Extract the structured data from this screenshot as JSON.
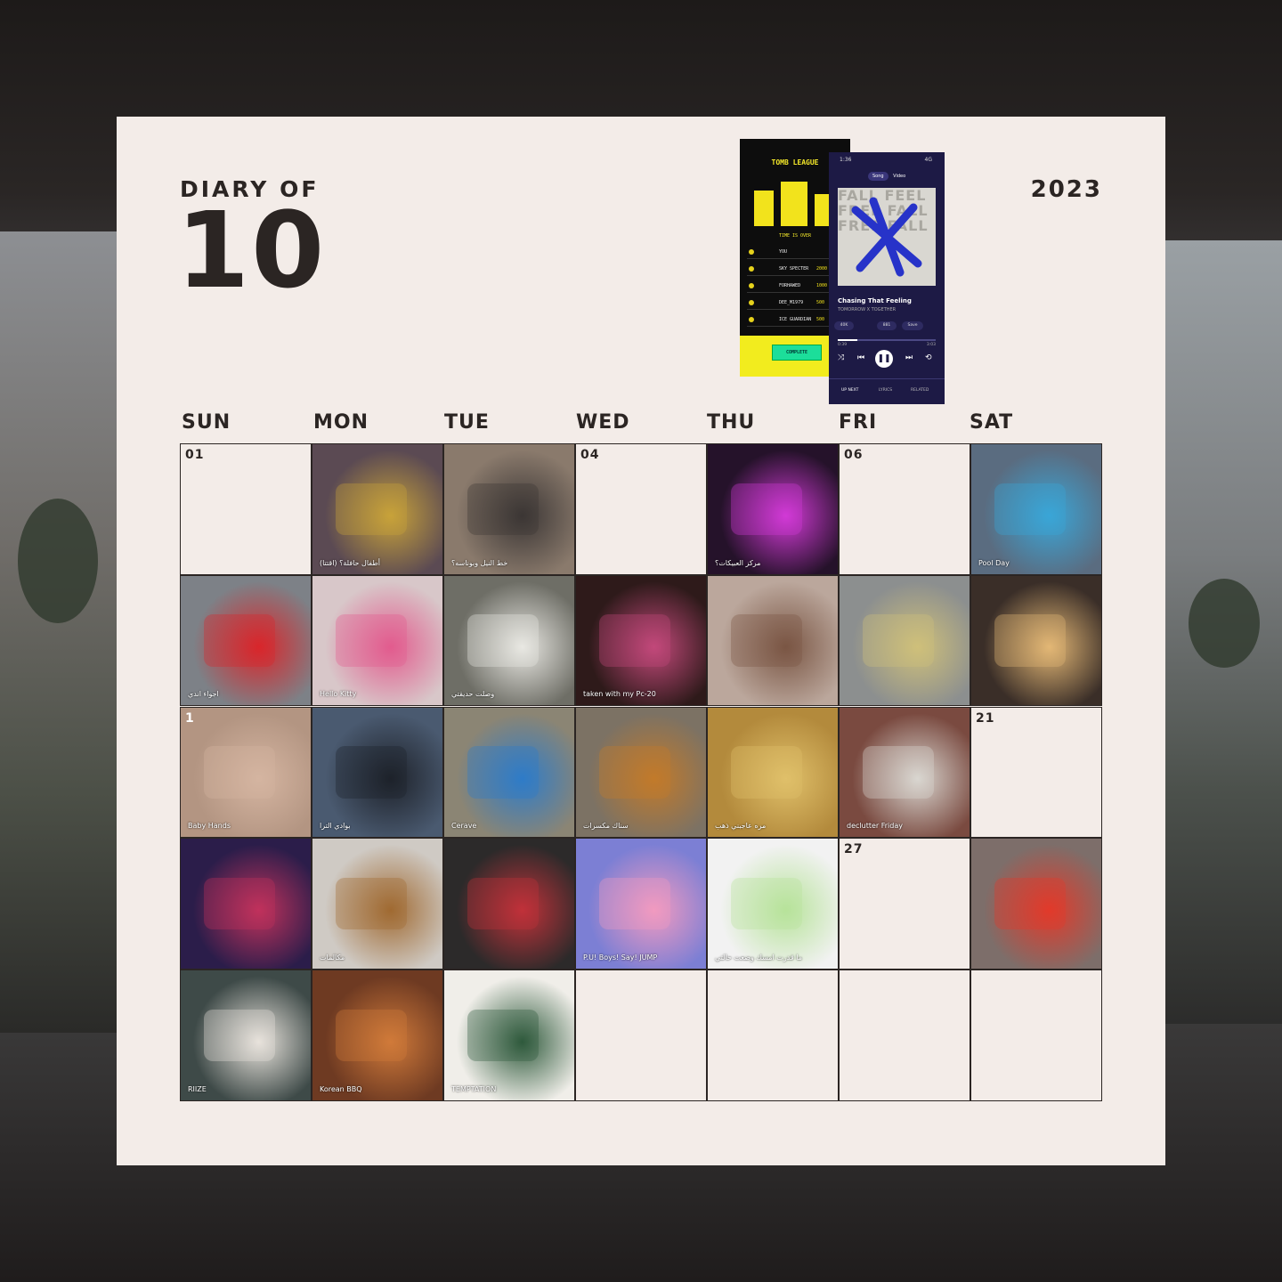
{
  "header": {
    "diary_of": "DIARY OF",
    "month": "10",
    "year": "2023"
  },
  "weekdays": [
    "SUN",
    "MON",
    "TUE",
    "WED",
    "THU",
    "FRI",
    "SAT"
  ],
  "game_screenshot": {
    "title": "TOMB LEAGUE",
    "status": "TIME IS OVER",
    "leaderboard": [
      {
        "rank": "1",
        "name": "YOU",
        "score": ""
      },
      {
        "rank": "2",
        "name": "SKY SPECTER",
        "score": "2000"
      },
      {
        "rank": "3",
        "name": "FORHAWED",
        "score": "1000"
      },
      {
        "rank": "4",
        "name": "DEE_M1979",
        "score": "500"
      },
      {
        "rank": "5",
        "name": "ICE GUARDIAN",
        "score": "500"
      }
    ],
    "button": "COMPLETE"
  },
  "music_screenshot": {
    "status_time": "1:36",
    "status_net": "4G",
    "tabs": [
      "Song",
      "Video"
    ],
    "art_text": "FALL FEEL FREE FALL FREE FALL",
    "song_title": "Chasing That Feeling",
    "artist": "TOMORROW X TOGETHER",
    "chips": [
      "40K",
      "881",
      "Save"
    ],
    "time_elapsed": "0:39",
    "time_total": "3:03",
    "bottom_tabs": [
      "UP NEXT",
      "LYRICS",
      "RELATED"
    ]
  },
  "days": [
    {
      "label": "01",
      "photo": false
    },
    {
      "label": "",
      "photo": true,
      "color": "#5b4a53",
      "accent": "#c8a23a",
      "caption": "أطفال حافلة؟ (اقتتا)"
    },
    {
      "label": "",
      "photo": true,
      "color": "#8a7a6c",
      "accent": "#3b3635",
      "caption": "خط النيل وبوناسه؟"
    },
    {
      "label": "04",
      "photo": false
    },
    {
      "label": "",
      "photo": true,
      "color": "#25122a",
      "accent": "#d23ad6",
      "caption": "مركز العبيكات؟"
    },
    {
      "label": "06",
      "photo": false
    },
    {
      "label": "",
      "photo": true,
      "color": "#5a6c80",
      "accent": "#3aa6d8",
      "caption": "Pool Day"
    },
    {
      "label": "",
      "photo": true,
      "color": "#7d8187",
      "accent": "#d9262b",
      "caption": "اجواء اندي"
    },
    {
      "label": "",
      "photo": true,
      "color": "#d8c7c9",
      "accent": "#e25c8e",
      "caption": "Hello Kitty"
    },
    {
      "label": "",
      "photo": true,
      "color": "#6e6e66",
      "accent": "#e9e8e3",
      "caption": "وصلت حديقتي"
    },
    {
      "label": "",
      "photo": true,
      "color": "#2e1a1a",
      "accent": "#c2497a",
      "caption": "taken with my Pc-20"
    },
    {
      "label": "",
      "photo": true,
      "color": "#bba79c",
      "accent": "#7a5644",
      "caption": ""
    },
    {
      "label": "",
      "photo": true,
      "color": "#8c8f8f",
      "accent": "#cfc07a",
      "caption": ""
    },
    {
      "label": "",
      "photo": true,
      "color": "#3a2e28",
      "accent": "#e3b775",
      "caption": ""
    },
    {
      "label": "1",
      "photo": true,
      "color": "#b39582",
      "accent": "#d5b5a1",
      "caption": "Baby Hands"
    },
    {
      "label": "",
      "photo": true,
      "color": "#4a5a70",
      "accent": "#1e222a",
      "caption": "بوادي الترا"
    },
    {
      "label": "",
      "photo": true,
      "color": "#8b8574",
      "accent": "#2f7cc8",
      "caption": "Cerave"
    },
    {
      "label": "",
      "photo": true,
      "color": "#7c7264",
      "accent": "#c27a2a",
      "caption": "سناك مكسرات"
    },
    {
      "label": "",
      "photo": true,
      "color": "#b38a3c",
      "accent": "#e0c06a",
      "caption": "مره عاجبني ذهب"
    },
    {
      "label": "",
      "photo": true,
      "color": "#7a4a40",
      "accent": "#d9d6d0",
      "caption": "declutter Friday"
    },
    {
      "label": "21",
      "photo": false
    },
    {
      "label": "",
      "photo": true,
      "color": "#2b1d4a",
      "accent": "#c1325c",
      "caption": ""
    },
    {
      "label": "",
      "photo": true,
      "color": "#cfcac4",
      "accent": "#a06a32",
      "caption": "مكالمات"
    },
    {
      "label": "",
      "photo": true,
      "color": "#2c2a2a",
      "accent": "#c1323a",
      "caption": ""
    },
    {
      "label": "",
      "photo": true,
      "color": "#7c7fd4",
      "accent": "#f29ac0",
      "caption": "P.U!  Boys! Say! JUMP"
    },
    {
      "label": "",
      "photo": true,
      "color": "#f2f2f2",
      "accent": "#b7e39a",
      "caption": "ما قدرت امسك وضعت حالتي"
    },
    {
      "label": "27",
      "photo": false
    },
    {
      "label": "",
      "photo": true,
      "color": "#7d6e6a",
      "accent": "#e23a2a",
      "caption": ""
    },
    {
      "label": "",
      "photo": true,
      "color": "#3e4a48",
      "accent": "#e8e3dc",
      "caption": "RIIZE"
    },
    {
      "label": "",
      "photo": true,
      "color": "#6e3a22",
      "accent": "#d07a3a",
      "caption": "Korean BBQ"
    },
    {
      "label": "",
      "photo": true,
      "color": "#f0eee9",
      "accent": "#2f5a3c",
      "caption": "TEMPTATION"
    },
    {
      "label": "",
      "photo": false
    },
    {
      "label": "",
      "photo": false
    },
    {
      "label": "",
      "photo": false
    },
    {
      "label": "",
      "photo": false
    }
  ]
}
